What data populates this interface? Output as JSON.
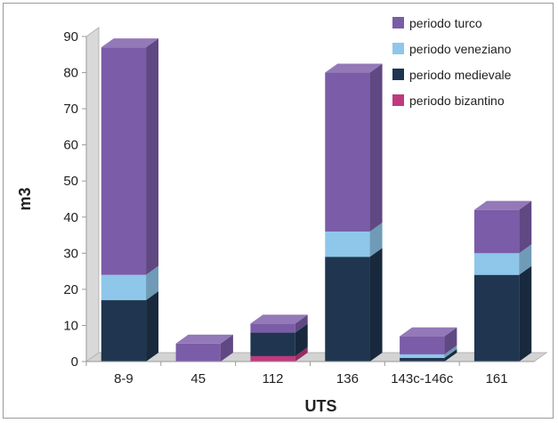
{
  "chart_data": {
    "type": "bar",
    "stacked": true,
    "three_d": true,
    "categories": [
      "8-9",
      "45",
      "112",
      "136",
      "143c-146c",
      "161"
    ],
    "series": [
      {
        "name": "periodo bizantino",
        "color": "#c0397e",
        "values": [
          0,
          0,
          1.5,
          0,
          0,
          0
        ]
      },
      {
        "name": "periodo medievale",
        "color": "#1f3550",
        "values": [
          17,
          0,
          6.5,
          29,
          1,
          24
        ]
      },
      {
        "name": "periodo veneziano",
        "color": "#8ec7ea",
        "values": [
          7,
          0,
          0,
          7,
          1,
          6
        ]
      },
      {
        "name": "periodo turco",
        "color": "#7b5ca8",
        "values": [
          63,
          5,
          2.5,
          44,
          5,
          12
        ]
      }
    ],
    "legend_order": [
      "periodo turco",
      "periodo veneziano",
      "periodo medievale",
      "periodo bizantino"
    ],
    "xlabel": "UTS",
    "ylabel": "m3",
    "ylim": [
      0,
      90
    ],
    "yticks": [
      0,
      10,
      20,
      30,
      40,
      50,
      60,
      70,
      80,
      90
    ],
    "legend_position": "top-right",
    "grid": false
  }
}
